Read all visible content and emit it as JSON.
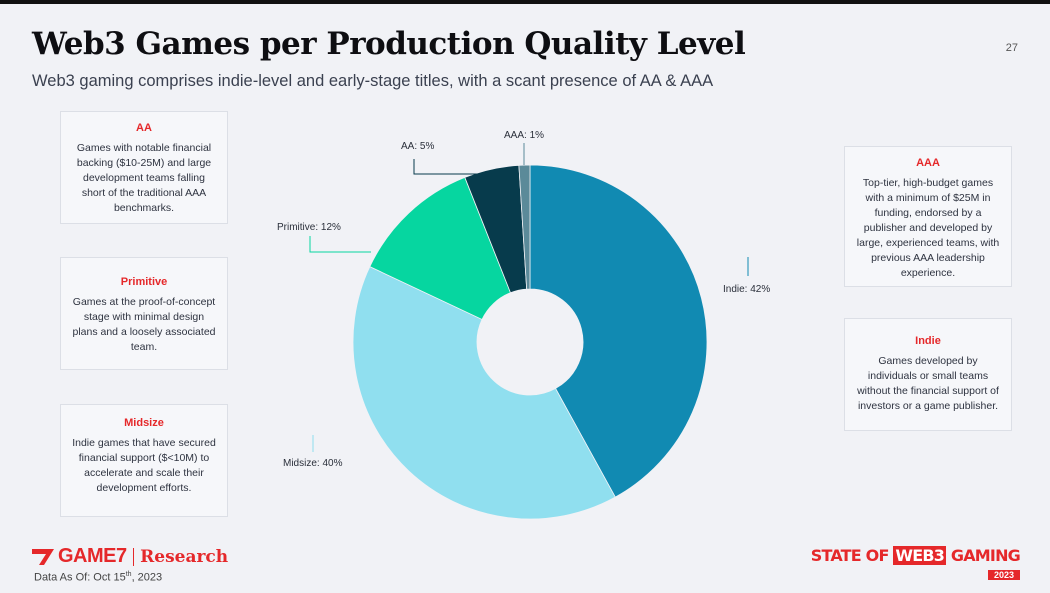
{
  "header": {
    "title": "Web3 Games per Production Quality Level",
    "subtitle": "Web3 gaming comprises indie-level and early-stage titles, with a scant presence of AA & AAA",
    "page_number": "27"
  },
  "cards": {
    "aa": {
      "title": "AA",
      "desc": "Games with notable financial backing ($10-25M) and large development teams falling short of the traditional AAA benchmarks."
    },
    "primitive": {
      "title": "Primitive",
      "desc": "Games at the proof-of-concept stage with minimal design plans and a loosely associated team."
    },
    "midsize": {
      "title": "Midsize",
      "desc": "Indie games that have secured financial support ($<10M) to accelerate and scale their development efforts."
    },
    "aaa": {
      "title": "AAA",
      "desc": "Top-tier, high-budget games with a minimum of $25M in funding, endorsed by a publisher and developed by large, experienced teams, with previous AAA leadership experience."
    },
    "indie": {
      "title": "Indie",
      "desc": "Games developed by individuals or small teams without the financial support of investors or a game publisher."
    }
  },
  "chart_data": {
    "type": "pie",
    "style": "donut",
    "categories": [
      "Indie",
      "Midsize",
      "Primitive",
      "AA",
      "AAA"
    ],
    "values": [
      42,
      40,
      12,
      5,
      1
    ],
    "labels": [
      "Indie: 42%",
      "Midsize: 40%",
      "Primitive: 12%",
      "AA: 5%",
      "AAA: 1%"
    ],
    "colors": [
      "#118ab2",
      "#90dfef",
      "#06d6a0",
      "#073b4c",
      "#5b8a99"
    ],
    "start": "top",
    "direction": "clockwise"
  },
  "footer": {
    "brand": "GAME7",
    "research": "Research",
    "as_of_prefix": "Data As Of: Oct 15",
    "as_of_sup": "th",
    "as_of_suffix": ", 2023",
    "sow_line1": "STATE OF ",
    "sow_line1_boxed": "WEB3",
    "sow_line1_end": " GAMING",
    "sow_year": "2023"
  }
}
